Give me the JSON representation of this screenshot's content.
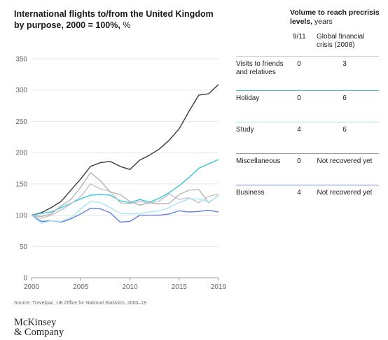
{
  "chart_title": "International flights to/from the United Kingdom by purpose, 2000 = 100%,",
  "chart_title_bold": "International flights to/from the United Kingdom by purpose, 2000 = 100%,",
  "chart_title_unit": "%",
  "source": "Source: Travelpac, UK Office for National Statistics, 2000–19",
  "logo_line1": "McKinsey",
  "logo_line2": "& Company",
  "table": {
    "title_bold": "Volume to reach precrisis levels,",
    "title_unit": "years",
    "col1": "9/11",
    "col2_line1": "Global financial",
    "col2_line2": "crisis (2008)",
    "rows": [
      {
        "category": "Visits to friends and relatives",
        "v1": "0",
        "v2": "3",
        "color": "#cfcfcf"
      },
      {
        "category": "Holiday",
        "v1": "0",
        "v2": "6",
        "color": "#3bc4da"
      },
      {
        "category": "Study",
        "v1": "4",
        "v2": "6",
        "color": "#a9e6f0"
      },
      {
        "category": "Miscellaneous",
        "v1": "0",
        "v2": "Not recovered yet",
        "color": "#9e9e9e"
      },
      {
        "category": "Business",
        "v1": "4",
        "v2": "Not recovered yet",
        "color": "#6b8ae6"
      }
    ]
  },
  "chart_data": {
    "type": "line",
    "x": [
      2000,
      2001,
      2002,
      2003,
      2004,
      2005,
      2006,
      2007,
      2008,
      2009,
      2010,
      2011,
      2012,
      2013,
      2014,
      2015,
      2016,
      2017,
      2018,
      2019
    ],
    "xticks": [
      2000,
      2005,
      2010,
      2015,
      2019
    ],
    "yticks": [
      0,
      50,
      100,
      150,
      200,
      250,
      300,
      350
    ],
    "ylim": [
      0,
      350
    ],
    "xlim": [
      2000,
      2019
    ],
    "grid": true,
    "series": [
      {
        "name": "Visits to friends and relatives",
        "color": "#3a3a3a",
        "values": [
          100,
          104,
          112,
          122,
          140,
          158,
          178,
          184,
          186,
          178,
          173,
          188,
          196,
          206,
          220,
          238,
          266,
          292,
          294,
          309
        ]
      },
      {
        "name": "Holiday",
        "color": "#3bc4da",
        "values": [
          100,
          103,
          105,
          112,
          119,
          126,
          132,
          133,
          132,
          123,
          120,
          125,
          121,
          127,
          136,
          147,
          160,
          175,
          182,
          189
        ]
      },
      {
        "name": "Study",
        "color": "#c4c4c4",
        "values": [
          100,
          95,
          100,
          108,
          118,
          130,
          150,
          142,
          138,
          120,
          118,
          122,
          119,
          123,
          134,
          125,
          128,
          120,
          130,
          134
        ]
      },
      {
        "name": "Miscellaneous",
        "color": "#b5b5b5",
        "values": [
          100,
          98,
          102,
          115,
          125,
          145,
          168,
          155,
          137,
          133,
          122,
          116,
          120,
          118,
          119,
          133,
          140,
          141,
          120,
          132
        ]
      },
      {
        "name": "Business",
        "color": "#5f7fe0",
        "values": [
          100,
          90,
          91,
          89,
          94,
          102,
          111,
          110,
          104,
          89,
          90,
          100,
          100,
          100,
          102,
          107,
          105,
          106,
          108,
          105
        ]
      },
      {
        "name": "",
        "color": "#a9e6f0",
        "values": [
          100,
          87,
          91,
          90,
          96,
          110,
          122,
          120,
          112,
          103,
          102,
          103,
          105,
          107,
          112,
          120,
          126,
          126,
          121,
          131
        ]
      }
    ]
  }
}
